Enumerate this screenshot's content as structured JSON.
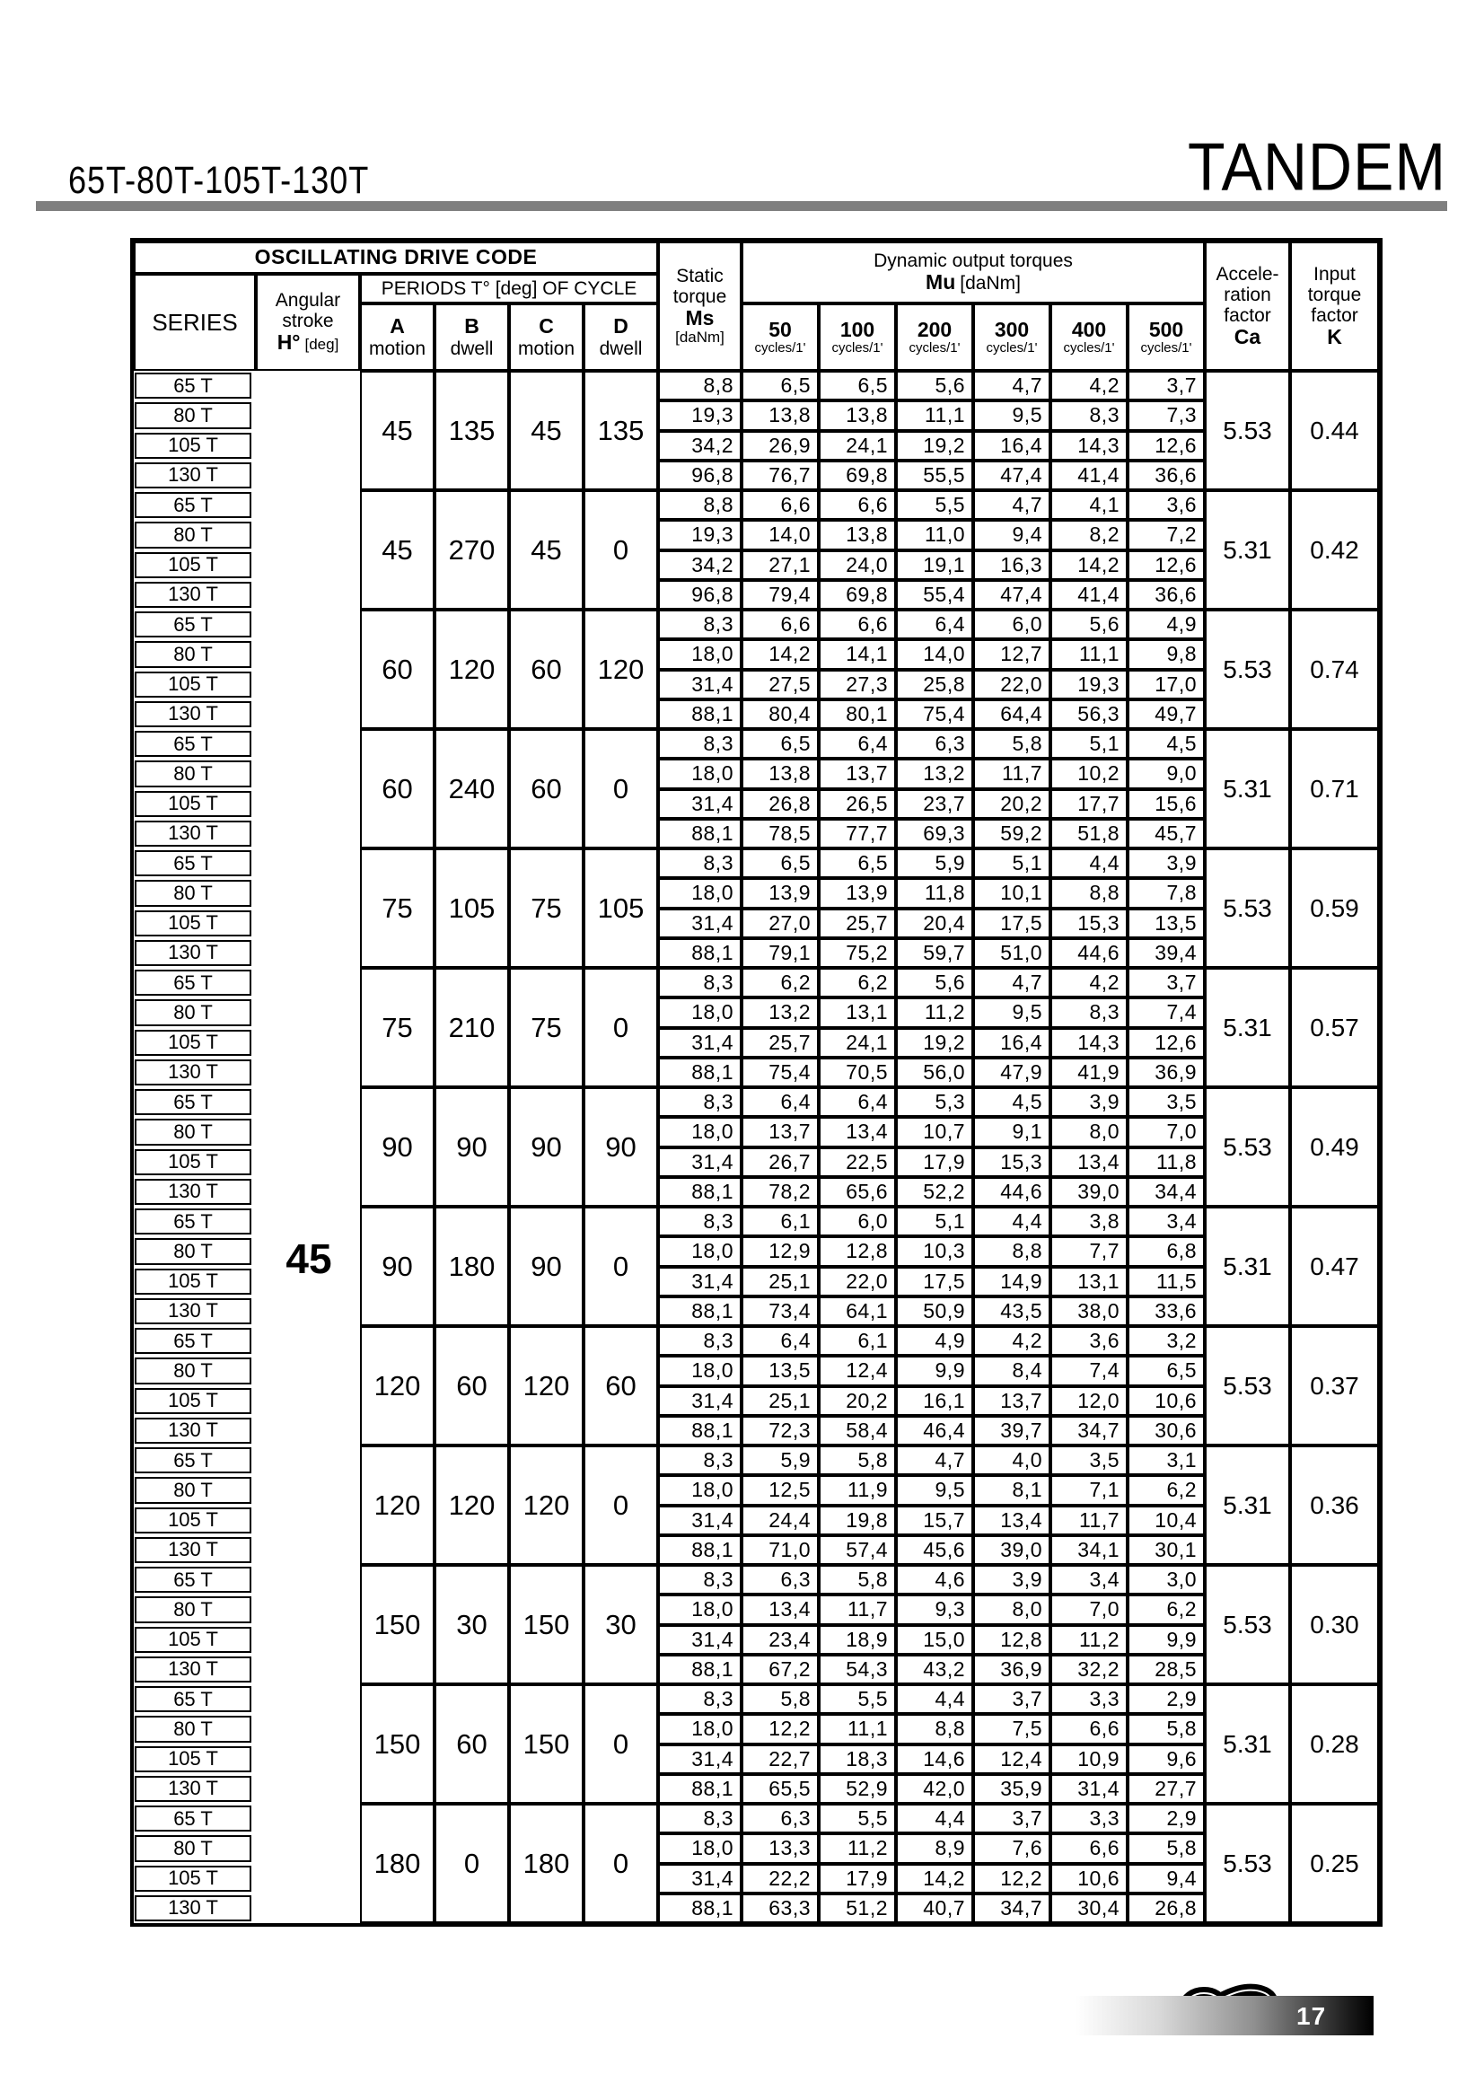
{
  "page": {
    "title_left": "65T-80T-105T-130T",
    "title_right": "TANDEM",
    "page_number": "17"
  },
  "colors": {
    "title_rule_gray": "#7f7f7f",
    "table_line_black": "#000000"
  },
  "header": {
    "oscillating": "OSCILLATING DRIVE CODE",
    "series": "SERIES",
    "angular_lines": [
      "Angular",
      "stroke"
    ],
    "angular_bold": "H°",
    "angular_unit": "[deg]",
    "periods": "PERIODS T° [deg] OF CYCLE",
    "period_cols": [
      {
        "letter": "A",
        "sub": "motion"
      },
      {
        "letter": "B",
        "sub": "dwell"
      },
      {
        "letter": "C",
        "sub": "motion"
      },
      {
        "letter": "D",
        "sub": "dwell"
      }
    ],
    "static_lines": [
      "Static",
      "torque"
    ],
    "static_bold": "Ms",
    "static_unit": "[daNm]",
    "dynamic": "Dynamic output torques",
    "mu_bold": "Mu",
    "mu_unit": "[daNm]",
    "cycle_cols": [
      "50",
      "100",
      "200",
      "300",
      "400",
      "500"
    ],
    "cycles_sub": "cycles/1'",
    "accel_lines": [
      "Accele-",
      "ration",
      "factor"
    ],
    "accel_bold": "Ca",
    "input_lines": [
      "Input",
      "torque",
      "factor"
    ],
    "input_bold": "K"
  },
  "table": {
    "angular_stroke_value": "45",
    "series_labels": [
      "65 T",
      "80 T",
      "105 T",
      "130 T"
    ],
    "groups": [
      {
        "periods": [
          "45",
          "135",
          "45",
          "135"
        ],
        "ca": "5.53",
        "k": "0.44",
        "rows": [
          {
            "ms": "8,8",
            "mu": [
              "6,5",
              "6,5",
              "5,6",
              "4,7",
              "4,2",
              "3,7"
            ]
          },
          {
            "ms": "19,3",
            "mu": [
              "13,8",
              "13,8",
              "11,1",
              "9,5",
              "8,3",
              "7,3"
            ]
          },
          {
            "ms": "34,2",
            "mu": [
              "26,9",
              "24,1",
              "19,2",
              "16,4",
              "14,3",
              "12,6"
            ]
          },
          {
            "ms": "96,8",
            "mu": [
              "76,7",
              "69,8",
              "55,5",
              "47,4",
              "41,4",
              "36,6"
            ]
          }
        ]
      },
      {
        "periods": [
          "45",
          "270",
          "45",
          "0"
        ],
        "ca": "5.31",
        "k": "0.42",
        "rows": [
          {
            "ms": "8,8",
            "mu": [
              "6,6",
              "6,6",
              "5,5",
              "4,7",
              "4,1",
              "3,6"
            ]
          },
          {
            "ms": "19,3",
            "mu": [
              "14,0",
              "13,8",
              "11,0",
              "9,4",
              "8,2",
              "7,2"
            ]
          },
          {
            "ms": "34,2",
            "mu": [
              "27,1",
              "24,0",
              "19,1",
              "16,3",
              "14,2",
              "12,6"
            ]
          },
          {
            "ms": "96,8",
            "mu": [
              "79,4",
              "69,8",
              "55,4",
              "47,4",
              "41,4",
              "36,6"
            ]
          }
        ]
      },
      {
        "periods": [
          "60",
          "120",
          "60",
          "120"
        ],
        "ca": "5.53",
        "k": "0.74",
        "rows": [
          {
            "ms": "8,3",
            "mu": [
              "6,6",
              "6,6",
              "6,4",
              "6,0",
              "5,6",
              "4,9"
            ]
          },
          {
            "ms": "18,0",
            "mu": [
              "14,2",
              "14,1",
              "14,0",
              "12,7",
              "11,1",
              "9,8"
            ]
          },
          {
            "ms": "31,4",
            "mu": [
              "27,5",
              "27,3",
              "25,8",
              "22,0",
              "19,3",
              "17,0"
            ]
          },
          {
            "ms": "88,1",
            "mu": [
              "80,4",
              "80,1",
              "75,4",
              "64,4",
              "56,3",
              "49,7"
            ]
          }
        ]
      },
      {
        "periods": [
          "60",
          "240",
          "60",
          "0"
        ],
        "ca": "5.31",
        "k": "0.71",
        "rows": [
          {
            "ms": "8,3",
            "mu": [
              "6,5",
              "6,4",
              "6,3",
              "5,8",
              "5,1",
              "4,5"
            ]
          },
          {
            "ms": "18,0",
            "mu": [
              "13,8",
              "13,7",
              "13,2",
              "11,7",
              "10,2",
              "9,0"
            ]
          },
          {
            "ms": "31,4",
            "mu": [
              "26,8",
              "26,5",
              "23,7",
              "20,2",
              "17,7",
              "15,6"
            ]
          },
          {
            "ms": "88,1",
            "mu": [
              "78,5",
              "77,7",
              "69,3",
              "59,2",
              "51,8",
              "45,7"
            ]
          }
        ]
      },
      {
        "periods": [
          "75",
          "105",
          "75",
          "105"
        ],
        "ca": "5.53",
        "k": "0.59",
        "rows": [
          {
            "ms": "8,3",
            "mu": [
              "6,5",
              "6,5",
              "5,9",
              "5,1",
              "4,4",
              "3,9"
            ]
          },
          {
            "ms": "18,0",
            "mu": [
              "13,9",
              "13,9",
              "11,8",
              "10,1",
              "8,8",
              "7,8"
            ]
          },
          {
            "ms": "31,4",
            "mu": [
              "27,0",
              "25,7",
              "20,4",
              "17,5",
              "15,3",
              "13,5"
            ]
          },
          {
            "ms": "88,1",
            "mu": [
              "79,1",
              "75,2",
              "59,7",
              "51,0",
              "44,6",
              "39,4"
            ]
          }
        ]
      },
      {
        "periods": [
          "75",
          "210",
          "75",
          "0"
        ],
        "ca": "5.31",
        "k": "0.57",
        "rows": [
          {
            "ms": "8,3",
            "mu": [
              "6,2",
              "6,2",
              "5,6",
              "4,7",
              "4,2",
              "3,7"
            ]
          },
          {
            "ms": "18,0",
            "mu": [
              "13,2",
              "13,1",
              "11,2",
              "9,5",
              "8,3",
              "7,4"
            ]
          },
          {
            "ms": "31,4",
            "mu": [
              "25,7",
              "24,1",
              "19,2",
              "16,4",
              "14,3",
              "12,6"
            ]
          },
          {
            "ms": "88,1",
            "mu": [
              "75,4",
              "70,5",
              "56,0",
              "47,9",
              "41,9",
              "36,9"
            ]
          }
        ]
      },
      {
        "periods": [
          "90",
          "90",
          "90",
          "90"
        ],
        "ca": "5.53",
        "k": "0.49",
        "rows": [
          {
            "ms": "8,3",
            "mu": [
              "6,4",
              "6,4",
              "5,3",
              "4,5",
              "3,9",
              "3,5"
            ]
          },
          {
            "ms": "18,0",
            "mu": [
              "13,7",
              "13,4",
              "10,7",
              "9,1",
              "8,0",
              "7,0"
            ]
          },
          {
            "ms": "31,4",
            "mu": [
              "26,7",
              "22,5",
              "17,9",
              "15,3",
              "13,4",
              "11,8"
            ]
          },
          {
            "ms": "88,1",
            "mu": [
              "78,2",
              "65,6",
              "52,2",
              "44,6",
              "39,0",
              "34,4"
            ]
          }
        ]
      },
      {
        "periods": [
          "90",
          "180",
          "90",
          "0"
        ],
        "ca": "5.31",
        "k": "0.47",
        "rows": [
          {
            "ms": "8,3",
            "mu": [
              "6,1",
              "6,0",
              "5,1",
              "4,4",
              "3,8",
              "3,4"
            ]
          },
          {
            "ms": "18,0",
            "mu": [
              "12,9",
              "12,8",
              "10,3",
              "8,8",
              "7,7",
              "6,8"
            ]
          },
          {
            "ms": "31,4",
            "mu": [
              "25,1",
              "22,0",
              "17,5",
              "14,9",
              "13,1",
              "11,5"
            ]
          },
          {
            "ms": "88,1",
            "mu": [
              "73,4",
              "64,1",
              "50,9",
              "43,5",
              "38,0",
              "33,6"
            ]
          }
        ]
      },
      {
        "periods": [
          "120",
          "60",
          "120",
          "60"
        ],
        "ca": "5.53",
        "k": "0.37",
        "rows": [
          {
            "ms": "8,3",
            "mu": [
              "6,4",
              "6,1",
              "4,9",
              "4,2",
              "3,6",
              "3,2"
            ]
          },
          {
            "ms": "18,0",
            "mu": [
              "13,5",
              "12,4",
              "9,9",
              "8,4",
              "7,4",
              "6,5"
            ]
          },
          {
            "ms": "31,4",
            "mu": [
              "25,1",
              "20,2",
              "16,1",
              "13,7",
              "12,0",
              "10,6"
            ]
          },
          {
            "ms": "88,1",
            "mu": [
              "72,3",
              "58,4",
              "46,4",
              "39,7",
              "34,7",
              "30,6"
            ]
          }
        ]
      },
      {
        "periods": [
          "120",
          "120",
          "120",
          "0"
        ],
        "ca": "5.31",
        "k": "0.36",
        "rows": [
          {
            "ms": "8,3",
            "mu": [
              "5,9",
              "5,8",
              "4,7",
              "4,0",
              "3,5",
              "3,1"
            ]
          },
          {
            "ms": "18,0",
            "mu": [
              "12,5",
              "11,9",
              "9,5",
              "8,1",
              "7,1",
              "6,2"
            ]
          },
          {
            "ms": "31,4",
            "mu": [
              "24,4",
              "19,8",
              "15,7",
              "13,4",
              "11,7",
              "10,4"
            ]
          },
          {
            "ms": "88,1",
            "mu": [
              "71,0",
              "57,4",
              "45,6",
              "39,0",
              "34,1",
              "30,1"
            ]
          }
        ]
      },
      {
        "periods": [
          "150",
          "30",
          "150",
          "30"
        ],
        "ca": "5.53",
        "k": "0.30",
        "rows": [
          {
            "ms": "8,3",
            "mu": [
              "6,3",
              "5,8",
              "4,6",
              "3,9",
              "3,4",
              "3,0"
            ]
          },
          {
            "ms": "18,0",
            "mu": [
              "13,4",
              "11,7",
              "9,3",
              "8,0",
              "7,0",
              "6,2"
            ]
          },
          {
            "ms": "31,4",
            "mu": [
              "23,4",
              "18,9",
              "15,0",
              "12,8",
              "11,2",
              "9,9"
            ]
          },
          {
            "ms": "88,1",
            "mu": [
              "67,2",
              "54,3",
              "43,2",
              "36,9",
              "32,2",
              "28,5"
            ]
          }
        ]
      },
      {
        "periods": [
          "150",
          "60",
          "150",
          "0"
        ],
        "ca": "5.31",
        "k": "0.28",
        "rows": [
          {
            "ms": "8,3",
            "mu": [
              "5,8",
              "5,5",
              "4,4",
              "3,7",
              "3,3",
              "2,9"
            ]
          },
          {
            "ms": "18,0",
            "mu": [
              "12,2",
              "11,1",
              "8,8",
              "7,5",
              "6,6",
              "5,8"
            ]
          },
          {
            "ms": "31,4",
            "mu": [
              "22,7",
              "18,3",
              "14,6",
              "12,4",
              "10,9",
              "9,6"
            ]
          },
          {
            "ms": "88,1",
            "mu": [
              "65,5",
              "52,9",
              "42,0",
              "35,9",
              "31,4",
              "27,7"
            ]
          }
        ]
      },
      {
        "periods": [
          "180",
          "0",
          "180",
          "0"
        ],
        "ca": "5.53",
        "k": "0.25",
        "rows": [
          {
            "ms": "8,3",
            "mu": [
              "6,3",
              "5,5",
              "4,4",
              "3,7",
              "3,3",
              "2,9"
            ]
          },
          {
            "ms": "18,0",
            "mu": [
              "13,3",
              "11,2",
              "8,9",
              "7,6",
              "6,6",
              "5,8"
            ]
          },
          {
            "ms": "31,4",
            "mu": [
              "22,2",
              "17,9",
              "14,2",
              "12,2",
              "10,6",
              "9,4"
            ]
          },
          {
            "ms": "88,1",
            "mu": [
              "63,3",
              "51,2",
              "40,7",
              "34,7",
              "30,4",
              "26,8"
            ]
          }
        ]
      }
    ]
  }
}
